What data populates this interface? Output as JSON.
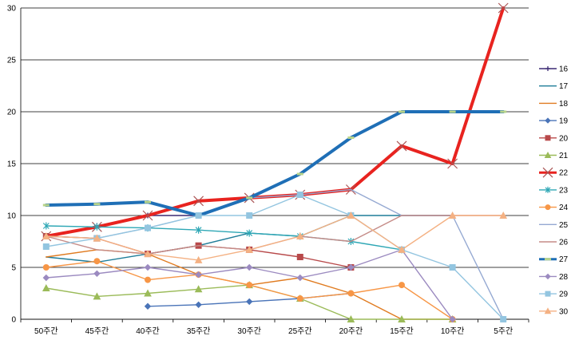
{
  "chart_data": {
    "type": "line",
    "categories": [
      "50주간",
      "45주간",
      "40주간",
      "35주간",
      "30주간",
      "25주간",
      "20주간",
      "15주간",
      "10주간",
      "5주간"
    ],
    "ylim": [
      0,
      30
    ],
    "yticks": [
      "0",
      "5",
      "10",
      "15",
      "20",
      "25",
      "30"
    ],
    "grid": "horizontal",
    "legend": "right",
    "series": [
      {
        "name": "16",
        "color": "#3b2a73",
        "marker": "plus",
        "values": [
          8,
          9,
          10,
          10,
          null,
          null,
          null,
          null,
          null,
          null
        ]
      },
      {
        "name": "17",
        "color": "#1f7d99",
        "marker": "none",
        "values": [
          6,
          5.5,
          6.3,
          7.1,
          8.3,
          8,
          10,
          10,
          10,
          null
        ]
      },
      {
        "name": "18",
        "color": "#e07b20",
        "marker": "none",
        "values": [
          6,
          6.7,
          6.3,
          4.3,
          3.3,
          4,
          2.5,
          0,
          0,
          null
        ]
      },
      {
        "name": "19",
        "color": "#4a74b8",
        "marker": "diamond",
        "values": [
          null,
          null,
          1.25,
          1.4,
          1.7,
          2,
          2.5,
          null,
          null,
          null
        ]
      },
      {
        "name": "20",
        "color": "#b8494a",
        "marker": "square",
        "values": [
          8,
          7.8,
          6.3,
          7.1,
          6.7,
          6,
          5,
          null,
          null,
          null
        ]
      },
      {
        "name": "21",
        "color": "#9bbb59",
        "marker": "triangle",
        "values": [
          3,
          2.2,
          2.5,
          2.9,
          3.3,
          2,
          0,
          0,
          0,
          null
        ]
      },
      {
        "name": "22",
        "color": "#e8231f",
        "marker": "x",
        "width": 4,
        "values": [
          8,
          8.9,
          10,
          11.4,
          11.7,
          12,
          12.5,
          16.7,
          15,
          30
        ]
      },
      {
        "name": "23",
        "color": "#2ea7b5",
        "marker": "star",
        "values": [
          9,
          8.9,
          8.8,
          8.6,
          8.3,
          8,
          7.5,
          6.7,
          null,
          null
        ]
      },
      {
        "name": "24",
        "color": "#f79646",
        "marker": "circle",
        "values": [
          5,
          5.6,
          3.8,
          4.3,
          3.3,
          2,
          2.5,
          3.3,
          0,
          null
        ]
      },
      {
        "name": "25",
        "color": "#95a9d2",
        "marker": "none",
        "values": [
          8,
          7.8,
          8.8,
          10,
          11.7,
          12,
          12.5,
          10,
          10,
          0
        ]
      },
      {
        "name": "26",
        "color": "#c58b87",
        "marker": "none",
        "values": [
          8,
          6.7,
          6.3,
          7.1,
          6.7,
          8,
          7.5,
          10,
          10,
          10
        ]
      },
      {
        "name": "27",
        "color": "#1f6fb6",
        "marker": "dash",
        "width": 4,
        "values": [
          11,
          11.1,
          11.3,
          10,
          11.7,
          14,
          17.5,
          20,
          20,
          20
        ]
      },
      {
        "name": "28",
        "color": "#9b8ac0",
        "marker": "diamond",
        "values": [
          4,
          4.4,
          5,
          4.3,
          5,
          4,
          5,
          6.7,
          0,
          null
        ]
      },
      {
        "name": "29",
        "color": "#93c5e0",
        "marker": "square",
        "values": [
          7,
          7.8,
          8.8,
          10,
          10,
          12,
          10,
          6.7,
          5,
          0
        ]
      },
      {
        "name": "30",
        "color": "#f4b183",
        "marker": "triangle",
        "values": [
          8,
          7.8,
          6.3,
          5.7,
          6.7,
          8,
          10,
          6.7,
          10,
          10
        ]
      }
    ]
  }
}
